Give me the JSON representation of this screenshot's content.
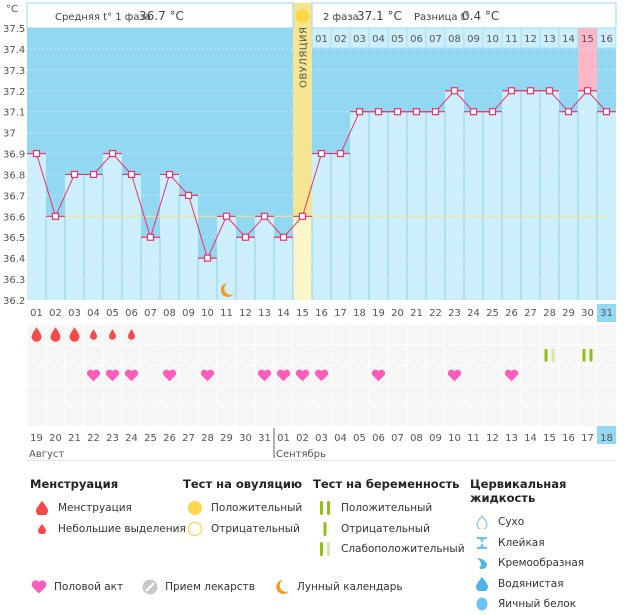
{
  "chart_data": {
    "type": "line",
    "title": "",
    "unit_label": "°C",
    "ylim": [
      36.2,
      37.5
    ],
    "yticks": [
      "37.5",
      "37.4",
      "37.3",
      "37.2",
      "37.1",
      "37",
      "36.9",
      "36.8",
      "36.7",
      "36.6",
      "36.5",
      "36.4",
      "36.3",
      "36.2"
    ],
    "ytick_values": [
      37.5,
      37.4,
      37.3,
      37.2,
      37.1,
      37.0,
      36.9,
      36.8,
      36.7,
      36.6,
      36.5,
      36.4,
      36.3,
      36.2
    ],
    "cycle_days": [
      "01",
      "02",
      "03",
      "04",
      "05",
      "06",
      "07",
      "08",
      "09",
      "10",
      "11",
      "12",
      "13",
      "14",
      "15",
      "16",
      "17",
      "18",
      "19",
      "20",
      "21",
      "22",
      "23",
      "24",
      "25",
      "26",
      "27",
      "28",
      "29",
      "30",
      "31"
    ],
    "current_cycle_day_index": 30,
    "series": [
      {
        "name": "Базальная температура",
        "values": [
          36.9,
          36.6,
          36.8,
          36.8,
          36.9,
          36.8,
          36.5,
          36.8,
          36.7,
          36.4,
          36.6,
          36.5,
          36.6,
          36.5,
          36.6,
          36.9,
          36.9,
          37.1,
          37.1,
          37.1,
          37.1,
          37.1,
          37.2,
          37.1,
          37.1,
          37.2,
          37.2,
          37.2,
          37.1,
          37.2,
          37.1
        ]
      }
    ],
    "coverline": 36.6,
    "ovulation_day_index": 14,
    "ovulation_label": "ОВУЛЯЦИЯ",
    "phase2_day_labels": [
      "01",
      "02",
      "03",
      "04",
      "05",
      "06",
      "07",
      "08",
      "09",
      "10",
      "11",
      "12",
      "13",
      "14",
      "15",
      "16"
    ],
    "phase2_highlight_index": 14,
    "header": {
      "phase1_label": "Средняя t° 1 фаза",
      "phase1_value": "36.7 °C",
      "phase2_label": "2 фаза",
      "phase2_value": "37.1 °C",
      "diff_label": "Разница t°",
      "diff_value": "0.4 °C"
    },
    "moon_day_index": 10,
    "markers": {
      "menstruation_heavy": [
        0,
        1,
        2
      ],
      "menstruation_light": [
        3,
        4,
        5
      ],
      "intercourse": [
        3,
        4,
        5,
        7,
        9,
        12,
        13,
        14,
        15,
        18,
        22,
        25
      ],
      "pregnancy_test_weak_positive": [
        27
      ],
      "pregnancy_test_positive": [
        29
      ]
    },
    "dates": [
      "19",
      "20",
      "21",
      "22",
      "23",
      "24",
      "25",
      "26",
      "27",
      "28",
      "29",
      "30",
      "31",
      "01",
      "02",
      "03",
      "04",
      "05",
      "06",
      "07",
      "08",
      "09",
      "10",
      "11",
      "12",
      "13",
      "14",
      "15",
      "16",
      "17",
      "18"
    ],
    "weekend_indices": [
      3,
      4,
      10,
      11,
      17,
      18,
      24,
      25
    ],
    "today_date_index": 30,
    "months": [
      {
        "label": "Август",
        "start_index": 0
      },
      {
        "label": "Сентябрь",
        "start_index": 13
      }
    ]
  },
  "colors": {
    "bg_upper": "#92d8f2",
    "bar_fill": "#cdeefb",
    "line": "#e8336b",
    "ovulation": "#f6e58f",
    "ovulation_light": "#fdf5c8",
    "highlight_pink": "#ffb6c9",
    "coverline": "#f2e38a",
    "today": "#92d8f2",
    "weekend": "#e8336b",
    "heart": "#ff5cbc",
    "drop": "#f54a4a",
    "test_green": "#8fbf10",
    "test_light": "#d4e6a6",
    "sun": "#fdd64a",
    "moon": "#f59a1b"
  },
  "legend": {
    "menstruation": {
      "title": "Менструация",
      "items": [
        "Менструация",
        "Небольшие выделения"
      ]
    },
    "ovulation_test": {
      "title": "Тест на овуляцию",
      "items": [
        "Положительный",
        "Отрицательный"
      ]
    },
    "pregnancy_test": {
      "title": "Тест на беременность",
      "items": [
        "Положительный",
        "Отрицательный",
        "Слабоположительный"
      ]
    },
    "cervical_fluid": {
      "title": "Цервикальная жидкость",
      "items": [
        "Сухо",
        "Клейкая",
        "Кремообразная",
        "Водянистая",
        "Яичный белок"
      ]
    },
    "other": [
      "Половой акт",
      "Прием лекарств",
      "Лунный календарь"
    ]
  }
}
